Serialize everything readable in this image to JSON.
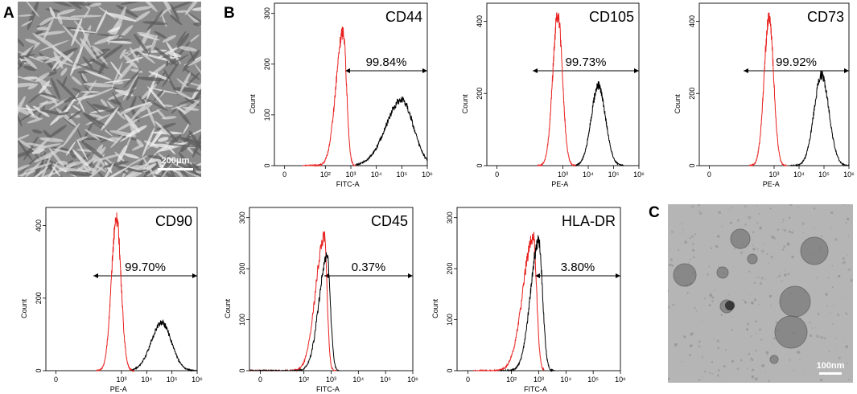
{
  "panel_labels": {
    "a": "A",
    "b": "B",
    "c": "C"
  },
  "micrograph_a": {
    "scale_bar": "200μm",
    "background": "#8a8a8a",
    "cell_color": "#d6d6d6"
  },
  "micrograph_c": {
    "scale_bar": "100nm",
    "background": "#b5b5b5",
    "vesicle_color": "#7a7a7a"
  },
  "colors": {
    "control": "#e8211f",
    "marker": "#000000"
  },
  "chart_data": [
    {
      "type": "area",
      "marker": "CD44",
      "percentage": "99.84%",
      "xlabel": "FITC-A",
      "ylabel": "Count",
      "ylim": [
        0,
        320
      ],
      "yticks": [
        "0",
        "100",
        "200",
        "300"
      ],
      "ytick_values": [
        0,
        100,
        200,
        300
      ],
      "xticks": [
        "0",
        "10²",
        "10³",
        "10⁴",
        "10⁵",
        "10⁶"
      ],
      "series": [
        {
          "name": "control",
          "peak_x": 2.7,
          "height": 265,
          "left_w": 0.28,
          "right_w": 0.13,
          "start": 1.1,
          "end": 3.2
        },
        {
          "name": "marker",
          "peak_x": 5.0,
          "height": 130,
          "left_w": 0.62,
          "right_w": 0.45,
          "start": 3.2,
          "end": 6.0
        }
      ]
    },
    {
      "type": "area",
      "marker": "CD105",
      "percentage": "99.73%",
      "xlabel": "PE-A",
      "ylabel": "Count",
      "ylim": [
        0,
        450
      ],
      "yticks": [
        "0",
        "200",
        "400"
      ],
      "ytick_values": [
        0,
        200,
        400
      ],
      "xticks": [
        "0",
        "10³",
        "10⁴",
        "10⁵",
        "10⁶"
      ],
      "series": [
        {
          "name": "control",
          "peak_x": 2.8,
          "height": 420,
          "left_w": 0.2,
          "right_w": 0.18,
          "start": 2.0,
          "end": 3.5
        },
        {
          "name": "marker",
          "peak_x": 4.4,
          "height": 222,
          "left_w": 0.28,
          "right_w": 0.28,
          "start": 3.5,
          "end": 5.4
        }
      ]
    },
    {
      "type": "area",
      "marker": "CD73",
      "percentage": "99.92%",
      "xlabel": "PE-A",
      "ylabel": "Count",
      "ylim": [
        0,
        450
      ],
      "yticks": [
        "0",
        "200",
        "400"
      ],
      "ytick_values": [
        0,
        200,
        400
      ],
      "xticks": [
        "0",
        "10³",
        "10⁴",
        "10⁵",
        "10⁶"
      ],
      "series": [
        {
          "name": "control",
          "peak_x": 2.8,
          "height": 410,
          "left_w": 0.2,
          "right_w": 0.18,
          "start": 2.0,
          "end": 3.5
        },
        {
          "name": "marker",
          "peak_x": 4.9,
          "height": 250,
          "left_w": 0.3,
          "right_w": 0.3,
          "start": 3.6,
          "end": 6.0
        }
      ]
    },
    {
      "type": "area",
      "marker": "CD90",
      "percentage": "99.70%",
      "xlabel": "PE-A",
      "ylabel": "Count",
      "ylim": [
        0,
        450
      ],
      "yticks": [
        "0",
        "200",
        "400"
      ],
      "ytick_values": [
        0,
        200,
        400
      ],
      "xticks": [
        "0",
        "10³",
        "10⁴",
        "10⁵",
        "10⁶"
      ],
      "series": [
        {
          "name": "control",
          "peak_x": 2.8,
          "height": 420,
          "left_w": 0.2,
          "right_w": 0.18,
          "start": 2.0,
          "end": 3.5
        },
        {
          "name": "marker",
          "peak_x": 4.6,
          "height": 132,
          "left_w": 0.42,
          "right_w": 0.38,
          "start": 3.4,
          "end": 6.0
        }
      ]
    },
    {
      "type": "area",
      "marker": "CD45",
      "percentage": "0.37%",
      "xlabel": "FITC-A",
      "ylabel": "Count",
      "ylim": [
        0,
        320
      ],
      "yticks": [
        "0",
        "100",
        "200",
        "300"
      ],
      "ytick_values": [
        0,
        100,
        200,
        300
      ],
      "xticks": [
        "0",
        "10²",
        "10³",
        "10⁴",
        "10⁵",
        "10⁶"
      ],
      "series": [
        {
          "name": "control",
          "peak_x": 2.75,
          "height": 262,
          "left_w": 0.32,
          "right_w": 0.1,
          "start": 0.0,
          "end": 3.2
        },
        {
          "name": "marker",
          "peak_x": 2.85,
          "height": 222,
          "left_w": 0.3,
          "right_w": 0.12,
          "start": 0.0,
          "end": 3.3
        }
      ]
    },
    {
      "type": "area",
      "marker": "HLA-DR",
      "percentage": "3.80%",
      "xlabel": "FITC-A",
      "ylabel": "Count",
      "ylim": [
        0,
        320
      ],
      "yticks": [
        "0",
        "100",
        "200",
        "300"
      ],
      "ytick_values": [
        0,
        100,
        200,
        300
      ],
      "xticks": [
        "0",
        "10²",
        "10³",
        "10⁴",
        "10⁵",
        "10⁶"
      ],
      "series": [
        {
          "name": "control",
          "peak_x": 2.8,
          "height": 262,
          "left_w": 0.38,
          "right_w": 0.12,
          "start": 0.6,
          "end": 3.2
        },
        {
          "name": "marker",
          "peak_x": 3.0,
          "height": 255,
          "left_w": 0.3,
          "right_w": 0.14,
          "start": 1.6,
          "end": 3.6
        }
      ]
    }
  ]
}
